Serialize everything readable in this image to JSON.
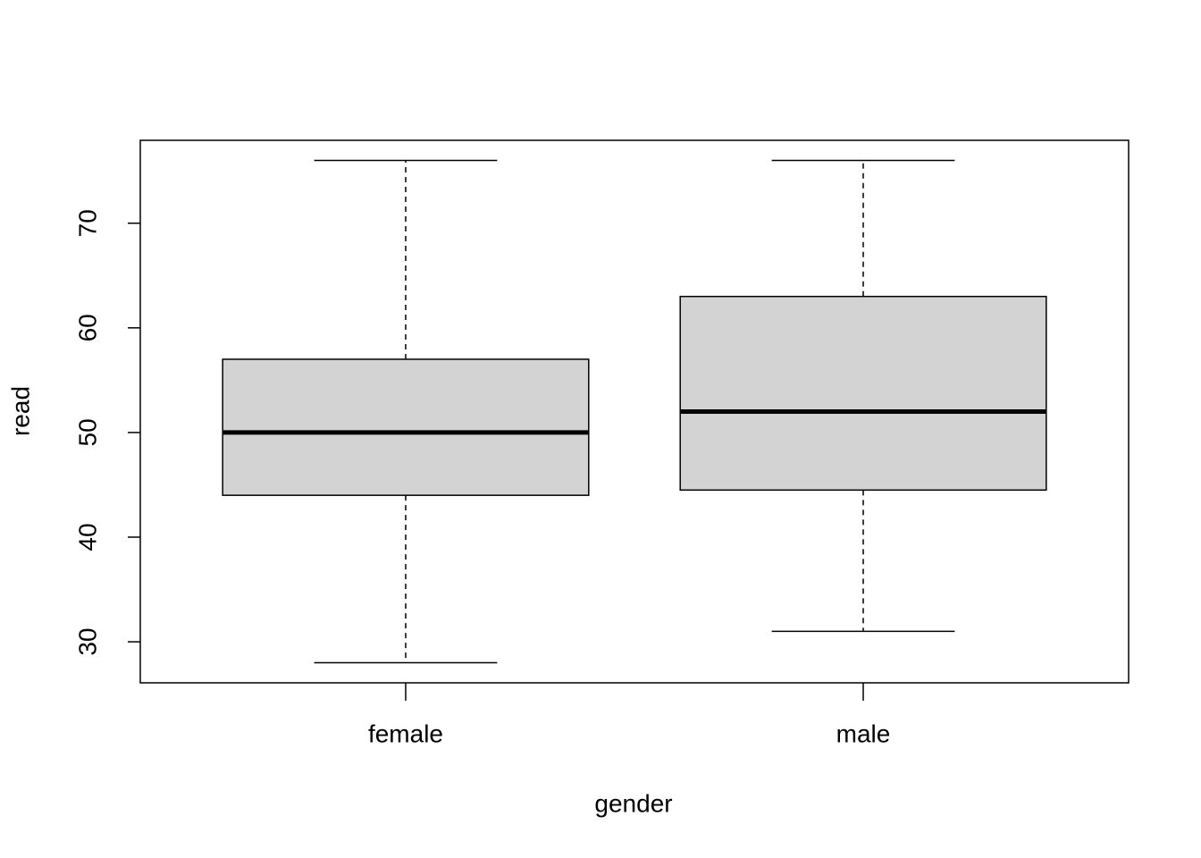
{
  "chart_data": {
    "type": "box",
    "x_label": "gender",
    "y_label": "read",
    "categories": [
      "female",
      "male"
    ],
    "boxes": [
      {
        "min": 28,
        "q1": 44,
        "median": 50,
        "q3": 57,
        "max": 76
      },
      {
        "min": 31,
        "q1": 44.5,
        "median": 52,
        "q3": 63,
        "max": 76
      }
    ],
    "color": "#d3d3d3",
    "ylim": [
      26.08,
      77.92
    ],
    "yticks": [
      30,
      40,
      50,
      60,
      70
    ]
  }
}
